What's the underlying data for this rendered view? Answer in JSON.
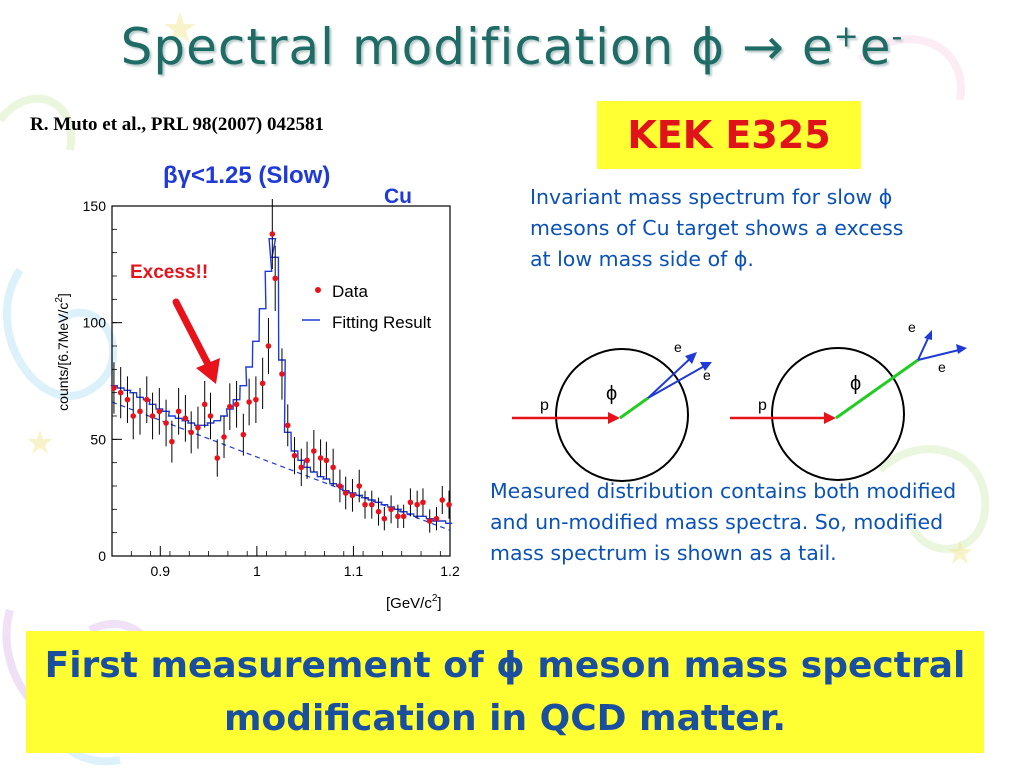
{
  "slide": {
    "title": "Spectral modification ϕ → e",
    "title_sup1": "+",
    "title_mid": "e",
    "title_sup2": "-",
    "reference": "R. Muto et al., PRL 98(2007) 042581",
    "badge": "KEK E325",
    "description_top": "Invariant mass spectrum for slow ϕ mesons of Cu target shows a excess at low mass side of  ϕ.",
    "description_bottom": "Measured distribution contains both modified and un-modified mass spectra. So, modified mass spectrum is shown as a tail.",
    "conclusion": "First measurement of ϕ meson mass spectral modification in QCD matter."
  },
  "diagram": {
    "left": {
      "proton": "p",
      "phi": "ϕ",
      "e1": "e",
      "e2": "e"
    },
    "right": {
      "proton": "p",
      "phi": "ϕ",
      "e1": "e",
      "e2": "e"
    }
  },
  "colors": {
    "title": "#1f6b66",
    "badge_bg": "#ffff33",
    "badge_text": "#e0131a",
    "text_blue": "#0a52b8",
    "data_red": "#e8131a",
    "fit_blue": "#1f3ad6"
  },
  "chart_data": {
    "type": "scatter",
    "condition_label": "βγ<1.25 (Slow)",
    "target_label": "Cu",
    "annotation": "Excess!!",
    "ylabel": "counts/[6.7MeV/c",
    "ylabel_sup": "2",
    "ylabel_end": "]",
    "xlabel": "[GeV/c",
    "xlabel_sup": "2",
    "xlabel_end": "]",
    "xlim": [
      0.85,
      1.2
    ],
    "ylim": [
      0,
      150
    ],
    "x_ticks": [
      0.9,
      1,
      1.1,
      1.2
    ],
    "x_tick_labels": [
      "0.9",
      "1",
      "1.1",
      "1.2"
    ],
    "y_ticks": [
      0,
      50,
      100,
      150
    ],
    "y_tick_labels": [
      "0",
      "50",
      "100",
      "150"
    ],
    "legend": [
      {
        "name": "Data",
        "style": "point"
      },
      {
        "name": "Fitting Result",
        "style": "line"
      }
    ],
    "series": [
      {
        "name": "Data",
        "x": [
          0.852,
          0.859,
          0.866,
          0.872,
          0.879,
          0.886,
          0.892,
          0.899,
          0.906,
          0.912,
          0.919,
          0.926,
          0.932,
          0.939,
          0.946,
          0.952,
          0.959,
          0.966,
          0.972,
          0.979,
          0.986,
          0.992,
          0.999,
          1.006,
          1.012,
          1.016,
          1.019,
          1.026,
          1.032,
          1.039,
          1.046,
          1.052,
          1.059,
          1.066,
          1.072,
          1.079,
          1.086,
          1.092,
          1.099,
          1.106,
          1.112,
          1.119,
          1.126,
          1.132,
          1.139,
          1.146,
          1.152,
          1.159,
          1.166,
          1.172,
          1.179,
          1.186,
          1.192,
          1.199
        ],
        "y": [
          72,
          70,
          67,
          60,
          62,
          67,
          60,
          62,
          57,
          49,
          62,
          59,
          53,
          55,
          65,
          60,
          42,
          51,
          64,
          65,
          52,
          66,
          67,
          74,
          90,
          138,
          119,
          78,
          56,
          43,
          38,
          41,
          45,
          42,
          41,
          38,
          30,
          27,
          26,
          30,
          22,
          22,
          19,
          16,
          20,
          17,
          17,
          23,
          22,
          23,
          15,
          16,
          24,
          22
        ],
        "errors": [
          11,
          11,
          10,
          10,
          10,
          10,
          10,
          10,
          10,
          9,
          10,
          10,
          9,
          9,
          10,
          10,
          8,
          9,
          10,
          10,
          9,
          10,
          10,
          11,
          12,
          15,
          14,
          11,
          9,
          8,
          8,
          8,
          9,
          8,
          8,
          8,
          7,
          7,
          7,
          7,
          6,
          6,
          6,
          5,
          6,
          5,
          5,
          6,
          6,
          6,
          5,
          5,
          6,
          6
        ]
      },
      {
        "name": "Fitting Result",
        "x": [
          0.852,
          0.859,
          0.866,
          0.872,
          0.879,
          0.886,
          0.892,
          0.899,
          0.906,
          0.912,
          0.919,
          0.926,
          0.932,
          0.939,
          0.946,
          0.952,
          0.959,
          0.966,
          0.972,
          0.979,
          0.986,
          0.992,
          0.999,
          1.006,
          1.012,
          1.016,
          1.019,
          1.026,
          1.032,
          1.039,
          1.046,
          1.052,
          1.059,
          1.066,
          1.072,
          1.079,
          1.086,
          1.092,
          1.099,
          1.106,
          1.112,
          1.119,
          1.126,
          1.132,
          1.139,
          1.146,
          1.152,
          1.159,
          1.166,
          1.172,
          1.179,
          1.186,
          1.192,
          1.199
        ],
        "y": [
          73,
          72,
          71,
          70,
          68,
          67,
          65,
          63,
          62,
          60,
          59,
          58,
          57,
          56,
          56,
          57,
          58,
          60,
          63,
          67,
          73,
          81,
          92,
          106,
          122,
          136,
          128,
          84,
          53,
          45,
          41,
          38,
          36,
          34,
          33,
          31,
          30,
          28,
          27,
          26,
          25,
          24,
          23,
          22,
          21,
          20,
          19,
          18,
          17,
          17,
          16,
          15,
          15,
          14
        ]
      },
      {
        "name": "Background",
        "x": [
          0.85,
          1.2
        ],
        "y": [
          66,
          11
        ]
      }
    ]
  }
}
